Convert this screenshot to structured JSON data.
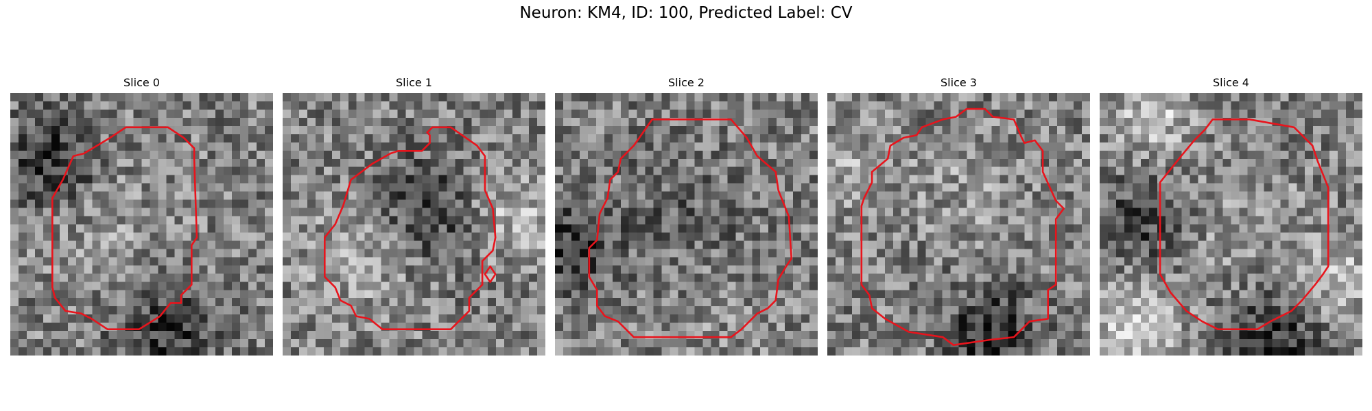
{
  "figure": {
    "title": "Neuron: KM4, ID: 100, Predicted Label: CV"
  },
  "chart_data": {
    "type": "heatmap",
    "colormap": "gray",
    "contour_color": "#e8141c",
    "grid_size": 32,
    "axes_visible": false,
    "panels": [
      {
        "title": "Slice 0",
        "seed": 11,
        "blobs": [
          {
            "x": 0.16,
            "y": 0.25,
            "s": 0.12,
            "a": -0.35
          },
          {
            "x": 0.6,
            "y": 0.92,
            "s": 0.14,
            "a": -0.3
          },
          {
            "x": 0.38,
            "y": 0.52,
            "s": 0.2,
            "a": 0.08
          }
        ],
        "contour": [
          [
            0.44,
            0.13
          ],
          [
            0.6,
            0.13
          ],
          [
            0.66,
            0.17
          ],
          [
            0.7,
            0.21
          ],
          [
            0.7,
            0.25
          ],
          [
            0.71,
            0.55
          ],
          [
            0.69,
            0.58
          ],
          [
            0.69,
            0.73
          ],
          [
            0.65,
            0.77
          ],
          [
            0.65,
            0.8
          ],
          [
            0.61,
            0.8
          ],
          [
            0.57,
            0.85
          ],
          [
            0.49,
            0.9
          ],
          [
            0.37,
            0.9
          ],
          [
            0.31,
            0.86
          ],
          [
            0.27,
            0.84
          ],
          [
            0.21,
            0.83
          ],
          [
            0.17,
            0.78
          ],
          [
            0.16,
            0.74
          ],
          [
            0.16,
            0.4
          ],
          [
            0.2,
            0.33
          ],
          [
            0.24,
            0.24
          ],
          [
            0.28,
            0.23
          ],
          [
            0.38,
            0.17
          ]
        ]
      },
      {
        "title": "Slice 1",
        "seed": 23,
        "blobs": [
          {
            "x": 0.55,
            "y": 0.45,
            "s": 0.14,
            "a": -0.28
          },
          {
            "x": 0.88,
            "y": 0.45,
            "s": 0.13,
            "a": 0.22
          },
          {
            "x": 0.3,
            "y": 0.62,
            "s": 0.16,
            "a": 0.18
          }
        ],
        "contour": [
          [
            0.57,
            0.13
          ],
          [
            0.64,
            0.13
          ],
          [
            0.74,
            0.2
          ],
          [
            0.77,
            0.24
          ],
          [
            0.77,
            0.37
          ],
          [
            0.8,
            0.44
          ],
          [
            0.81,
            0.55
          ],
          [
            0.8,
            0.6
          ],
          [
            0.76,
            0.64
          ],
          [
            0.76,
            0.73
          ],
          [
            0.71,
            0.78
          ],
          [
            0.71,
            0.83
          ],
          [
            0.67,
            0.87
          ],
          [
            0.64,
            0.9
          ],
          [
            0.38,
            0.9
          ],
          [
            0.33,
            0.86
          ],
          [
            0.28,
            0.85
          ],
          [
            0.26,
            0.81
          ],
          [
            0.22,
            0.79
          ],
          [
            0.2,
            0.74
          ],
          [
            0.16,
            0.7
          ],
          [
            0.16,
            0.55
          ],
          [
            0.2,
            0.5
          ],
          [
            0.23,
            0.43
          ],
          [
            0.26,
            0.33
          ],
          [
            0.34,
            0.27
          ],
          [
            0.41,
            0.23
          ],
          [
            0.44,
            0.22
          ],
          [
            0.53,
            0.22
          ],
          [
            0.56,
            0.19
          ],
          [
            0.56,
            0.16
          ],
          [
            0.55,
            0.15
          ]
        ],
        "extra_contours": [
          [
            [
              0.79,
              0.66
            ],
            [
              0.81,
              0.69
            ],
            [
              0.79,
              0.72
            ],
            [
              0.77,
              0.69
            ]
          ]
        ]
      },
      {
        "title": "Slice 2",
        "seed": 37,
        "blobs": [
          {
            "x": 0.05,
            "y": 0.6,
            "s": 0.12,
            "a": -0.3
          },
          {
            "x": 0.48,
            "y": 0.48,
            "s": 0.2,
            "a": -0.12
          },
          {
            "x": 0.55,
            "y": 0.8,
            "s": 0.18,
            "a": 0.06
          }
        ],
        "contour": [
          [
            0.37,
            0.1
          ],
          [
            0.67,
            0.1
          ],
          [
            0.73,
            0.17
          ],
          [
            0.77,
            0.24
          ],
          [
            0.84,
            0.3
          ],
          [
            0.85,
            0.37
          ],
          [
            0.89,
            0.47
          ],
          [
            0.9,
            0.63
          ],
          [
            0.88,
            0.66
          ],
          [
            0.85,
            0.71
          ],
          [
            0.84,
            0.79
          ],
          [
            0.81,
            0.82
          ],
          [
            0.77,
            0.84
          ],
          [
            0.71,
            0.9
          ],
          [
            0.67,
            0.93
          ],
          [
            0.3,
            0.93
          ],
          [
            0.27,
            0.9
          ],
          [
            0.24,
            0.87
          ],
          [
            0.19,
            0.85
          ],
          [
            0.16,
            0.81
          ],
          [
            0.16,
            0.75
          ],
          [
            0.13,
            0.7
          ],
          [
            0.13,
            0.59
          ],
          [
            0.16,
            0.56
          ],
          [
            0.17,
            0.46
          ],
          [
            0.2,
            0.4
          ],
          [
            0.21,
            0.33
          ],
          [
            0.24,
            0.3
          ],
          [
            0.25,
            0.25
          ],
          [
            0.3,
            0.2
          ]
        ]
      },
      {
        "title": "Slice 3",
        "seed": 41,
        "blobs": [
          {
            "x": 0.62,
            "y": 0.92,
            "s": 0.12,
            "a": -0.35
          },
          {
            "x": 0.1,
            "y": 0.3,
            "s": 0.12,
            "a": 0.15
          },
          {
            "x": 0.55,
            "y": 0.35,
            "s": 0.14,
            "a": 0.1
          }
        ],
        "contour": [
          [
            0.53,
            0.06
          ],
          [
            0.6,
            0.06
          ],
          [
            0.63,
            0.09
          ],
          [
            0.71,
            0.1
          ],
          [
            0.74,
            0.17
          ],
          [
            0.75,
            0.19
          ],
          [
            0.79,
            0.18
          ],
          [
            0.82,
            0.22
          ],
          [
            0.82,
            0.3
          ],
          [
            0.87,
            0.41
          ],
          [
            0.9,
            0.44
          ],
          [
            0.87,
            0.48
          ],
          [
            0.87,
            0.73
          ],
          [
            0.84,
            0.75
          ],
          [
            0.84,
            0.86
          ],
          [
            0.77,
            0.87
          ],
          [
            0.71,
            0.93
          ],
          [
            0.62,
            0.94
          ],
          [
            0.48,
            0.96
          ],
          [
            0.44,
            0.93
          ],
          [
            0.31,
            0.91
          ],
          [
            0.22,
            0.86
          ],
          [
            0.17,
            0.82
          ],
          [
            0.16,
            0.77
          ],
          [
            0.13,
            0.73
          ],
          [
            0.13,
            0.43
          ],
          [
            0.14,
            0.4
          ],
          [
            0.17,
            0.34
          ],
          [
            0.17,
            0.3
          ],
          [
            0.23,
            0.25
          ],
          [
            0.24,
            0.2
          ],
          [
            0.29,
            0.17
          ],
          [
            0.34,
            0.16
          ],
          [
            0.36,
            0.13
          ],
          [
            0.44,
            0.1
          ],
          [
            0.49,
            0.09
          ]
        ]
      },
      {
        "title": "Slice 4",
        "seed": 53,
        "blobs": [
          {
            "x": 0.12,
            "y": 0.9,
            "s": 0.14,
            "a": 0.3
          },
          {
            "x": 0.66,
            "y": 0.95,
            "s": 0.14,
            "a": -0.32
          },
          {
            "x": 0.15,
            "y": 0.5,
            "s": 0.12,
            "a": -0.25
          },
          {
            "x": 0.2,
            "y": 0.08,
            "s": 0.1,
            "a": 0.28
          },
          {
            "x": 0.92,
            "y": 0.72,
            "s": 0.1,
            "a": 0.25
          },
          {
            "x": 0.55,
            "y": 0.52,
            "s": 0.18,
            "a": 0.1
          }
        ],
        "contour": [
          [
            0.43,
            0.1
          ],
          [
            0.57,
            0.1
          ],
          [
            0.74,
            0.13
          ],
          [
            0.81,
            0.2
          ],
          [
            0.83,
            0.26
          ],
          [
            0.85,
            0.31
          ],
          [
            0.87,
            0.36
          ],
          [
            0.87,
            0.66
          ],
          [
            0.85,
            0.69
          ],
          [
            0.82,
            0.73
          ],
          [
            0.77,
            0.79
          ],
          [
            0.73,
            0.83
          ],
          [
            0.65,
            0.87
          ],
          [
            0.6,
            0.9
          ],
          [
            0.45,
            0.9
          ],
          [
            0.39,
            0.87
          ],
          [
            0.33,
            0.83
          ],
          [
            0.27,
            0.76
          ],
          [
            0.23,
            0.69
          ],
          [
            0.23,
            0.34
          ],
          [
            0.27,
            0.29
          ],
          [
            0.31,
            0.24
          ],
          [
            0.36,
            0.18
          ],
          [
            0.4,
            0.14
          ]
        ]
      }
    ]
  }
}
